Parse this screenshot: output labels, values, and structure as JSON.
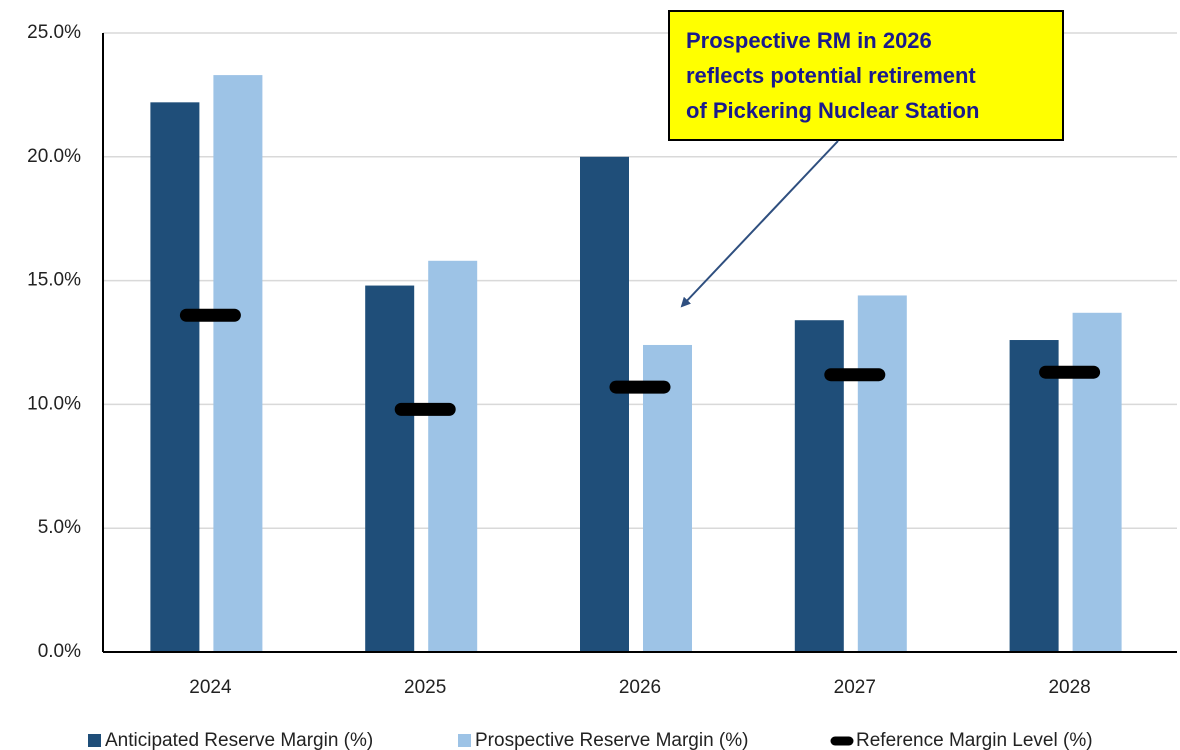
{
  "chart_data": {
    "type": "bar",
    "categories": [
      "2024",
      "2025",
      "2026",
      "2027",
      "2028"
    ],
    "series": [
      {
        "name": "Anticipated Reserve Margin (%)",
        "color": "#1f4e79",
        "mark": "bar",
        "values": [
          22.2,
          14.8,
          20.0,
          13.4,
          12.6
        ]
      },
      {
        "name": "Prospective Reserve Margin (%)",
        "color": "#9dc3e6",
        "mark": "bar",
        "values": [
          23.3,
          15.8,
          12.4,
          14.4,
          13.7
        ]
      },
      {
        "name": "Reference Margin Level (%)",
        "color": "#000000",
        "mark": "dash",
        "values": [
          13.6,
          9.8,
          10.7,
          11.2,
          11.3
        ]
      }
    ],
    "ylim": [
      0,
      25
    ],
    "yticks": [
      {
        "value": 0,
        "label": "0.0%"
      },
      {
        "value": 5,
        "label": "5.0%"
      },
      {
        "value": 10,
        "label": "10.0%"
      },
      {
        "value": 15,
        "label": "15.0%"
      },
      {
        "value": 20,
        "label": "20.0%"
      },
      {
        "value": 25,
        "label": "25.0%"
      }
    ],
    "grid": true,
    "legend": "bottom",
    "annotation_lines": [
      "Prospective RM in 2026",
      "reflects potential retirement",
      "of Pickering Nuclear Station"
    ],
    "annotation_color": "#ffff00"
  }
}
